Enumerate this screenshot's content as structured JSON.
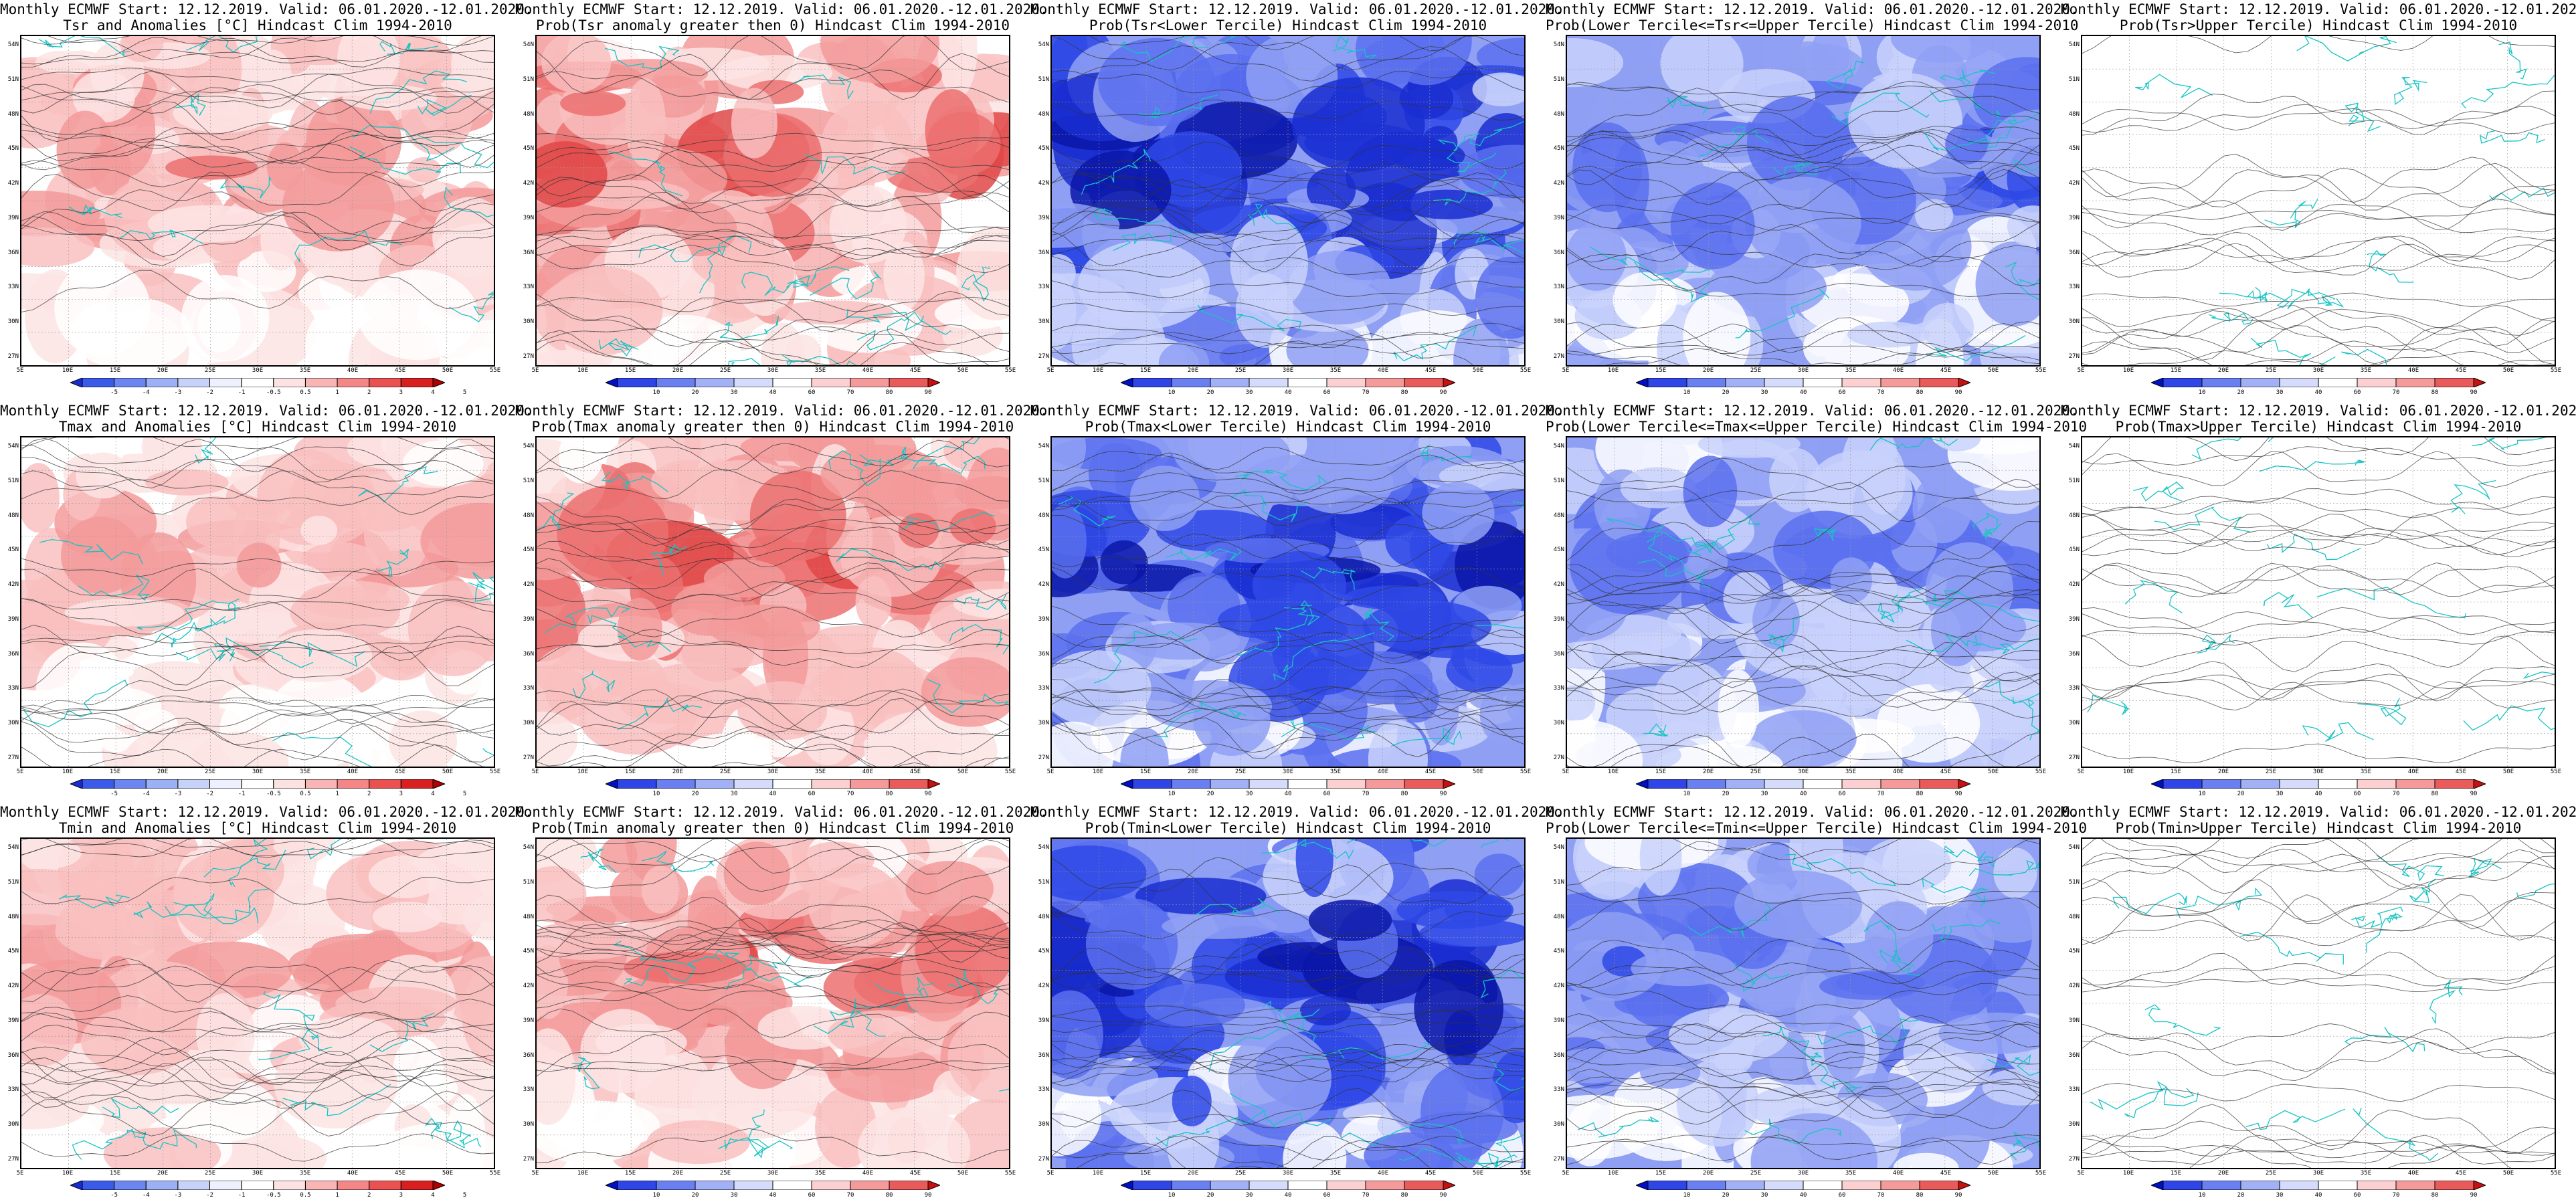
{
  "title_line1": "Monthly ECMWF Start: 12.12.2019. Valid: 06.01.2020.-12.01.2020.",
  "lat_labels": [
    "54N",
    "51N",
    "48N",
    "45N",
    "42N",
    "39N",
    "36N",
    "33N",
    "30N",
    "27N"
  ],
  "lon_labels": [
    "5E",
    "10E",
    "15E",
    "20E",
    "25E",
    "30E",
    "35E",
    "40E",
    "45E",
    "50E",
    "55E"
  ],
  "anomaly_scale": {
    "labels": [
      "-5",
      "-4",
      "-3",
      "-2",
      "-1",
      "-0.5",
      "0.5",
      "1",
      "2",
      "3",
      "4",
      "5"
    ],
    "colors": [
      "#1a2bd6",
      "#3a5ae8",
      "#6b86f0",
      "#9cb0f5",
      "#c7d2f9",
      "#eef1fd",
      "#ffffff",
      "#fde2e2",
      "#f9b5b5",
      "#f38787",
      "#ea5252",
      "#d92020",
      "#b00000"
    ]
  },
  "prob_scale": {
    "labels": [
      "10",
      "20",
      "30",
      "40",
      "60",
      "70",
      "80",
      "90"
    ],
    "colors": [
      "#0010c8",
      "#2f45e6",
      "#6a7ff0",
      "#a2b1f6",
      "#d4dbfb",
      "#ffffff",
      "#fcd0d0",
      "#f59a9a",
      "#e95a5a",
      "#c81010"
    ]
  },
  "panels": [
    {
      "title2": "Tsr and Anomalies [°C] Hindcast Clim 1994-2010",
      "scale": "anomaly",
      "fill": "warm",
      "intensity": 0.55
    },
    {
      "title2": "Prob(Tsr anomaly greater then 0) Hindcast Clim 1994-2010",
      "scale": "prob",
      "fill": "warm",
      "intensity": 0.75
    },
    {
      "title2": "Prob(Tsr<Lower Tercile) Hindcast Clim 1994-2010",
      "scale": "prob",
      "fill": "cold",
      "intensity": 0.95
    },
    {
      "title2": "Prob(Lower Tercile<=Tsr<=Upper Tercile) Hindcast Clim 1994-2010",
      "scale": "prob",
      "fill": "cold",
      "intensity": 0.6
    },
    {
      "title2": "Prob(Tsr>Upper Tercile) Hindcast Clim 1994-2010",
      "scale": "prob",
      "fill": "pale",
      "intensity": 0.25
    },
    {
      "title2": "Tmax and Anomalies [°C] Hindcast Clim 1994-2010",
      "scale": "anomaly",
      "fill": "warm",
      "intensity": 0.5
    },
    {
      "title2": "Prob(Tmax anomaly greater then 0) Hindcast Clim 1994-2010",
      "scale": "prob",
      "fill": "warm",
      "intensity": 0.72
    },
    {
      "title2": "Prob(Tmax<Lower Tercile) Hindcast Clim 1994-2010",
      "scale": "prob",
      "fill": "cold",
      "intensity": 0.92
    },
    {
      "title2": "Prob(Lower Tercile<=Tmax<=Upper Tercile) Hindcast Clim 1994-2010",
      "scale": "prob",
      "fill": "cold",
      "intensity": 0.55
    },
    {
      "title2": "Prob(Tmax>Upper Tercile) Hindcast Clim 1994-2010",
      "scale": "prob",
      "fill": "pale",
      "intensity": 0.22
    },
    {
      "title2": "Tmin and Anomalies [°C] Hindcast Clim 1994-2010",
      "scale": "anomaly",
      "fill": "warm",
      "intensity": 0.5
    },
    {
      "title2": "Prob(Tmin anomaly greater then 0) Hindcast Clim 1994-2010",
      "scale": "prob",
      "fill": "warm",
      "intensity": 0.7
    },
    {
      "title2": "Prob(Tmin<Lower Tercile) Hindcast Clim 1994-2010",
      "scale": "prob",
      "fill": "cold",
      "intensity": 0.95
    },
    {
      "title2": "Prob(Lower Tercile<=Tmin<=Upper Tercile) Hindcast Clim 1994-2010",
      "scale": "prob",
      "fill": "cold",
      "intensity": 0.6
    },
    {
      "title2": "Prob(Tmin>Upper Tercile) Hindcast Clim 1994-2010",
      "scale": "prob",
      "fill": "pale",
      "intensity": 0.2
    }
  ]
}
